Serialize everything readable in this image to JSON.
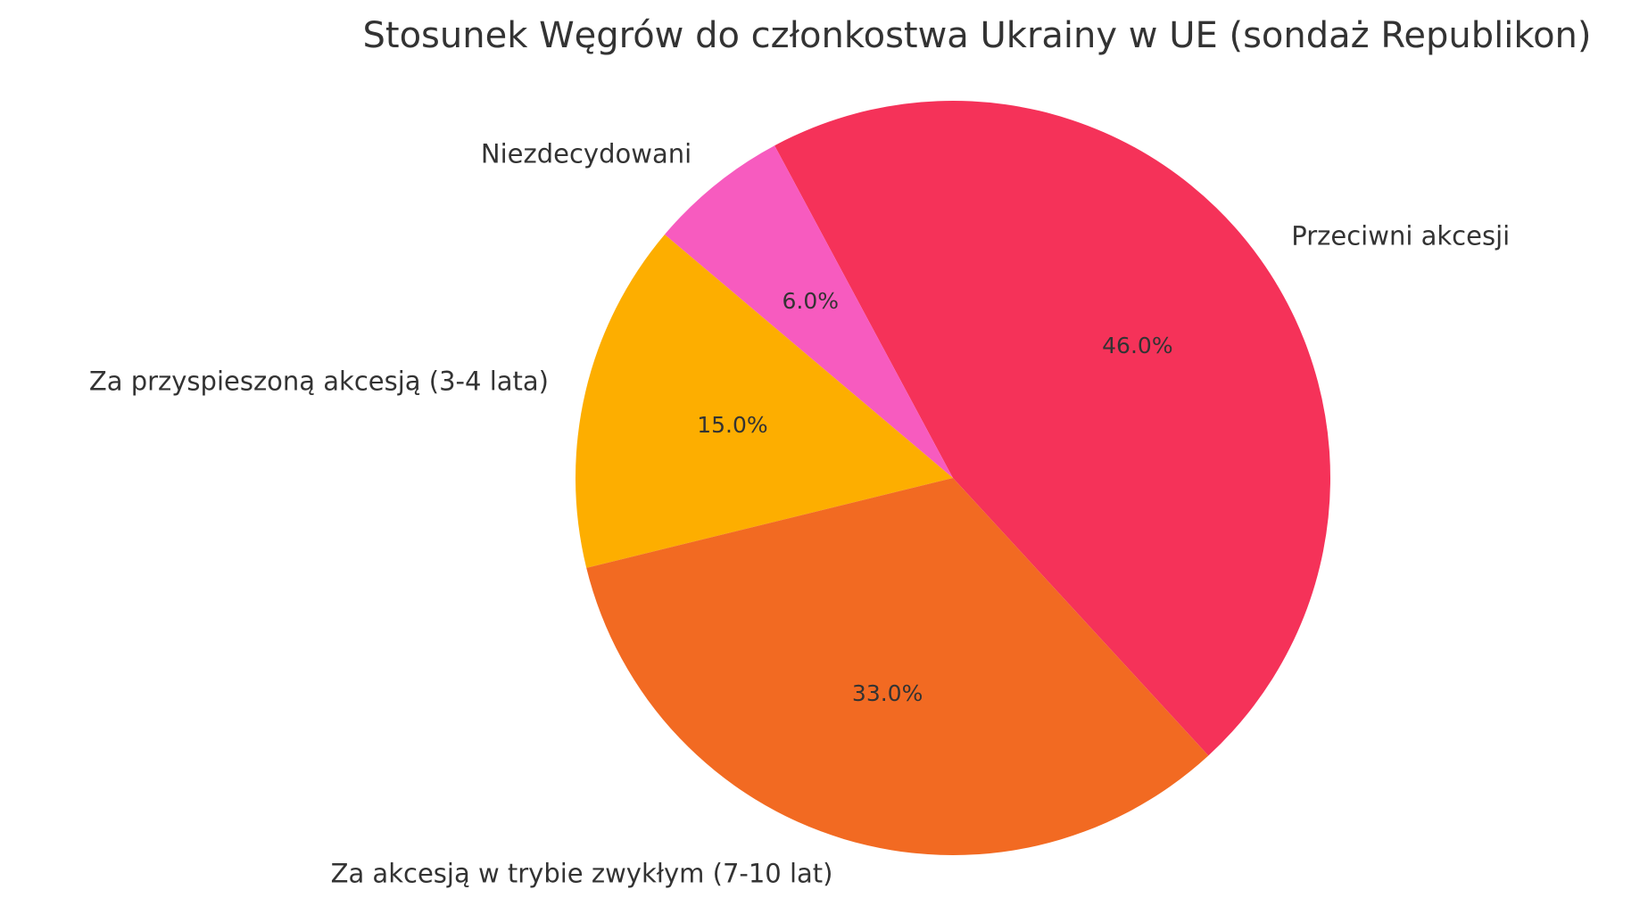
{
  "chart_data": {
    "type": "pie",
    "title": "Stosunek Węgrów do członkostwa Ukrainy w UE (sondaż Republikon)",
    "categories": [
      "Przeciwni akcesji",
      "Niezdecydowani",
      "Za przyspieszoną akcesją (3-4 lata)",
      "Za akcesją w trybie zwykłym (7-10 lat)"
    ],
    "values": [
      46,
      6,
      15,
      33
    ],
    "value_labels": [
      "46.0%",
      "6.0%",
      "15.0%",
      "33.0%"
    ],
    "colors": [
      "#f53259",
      "#f75bbf",
      "#fdae00",
      "#f26a22"
    ]
  }
}
